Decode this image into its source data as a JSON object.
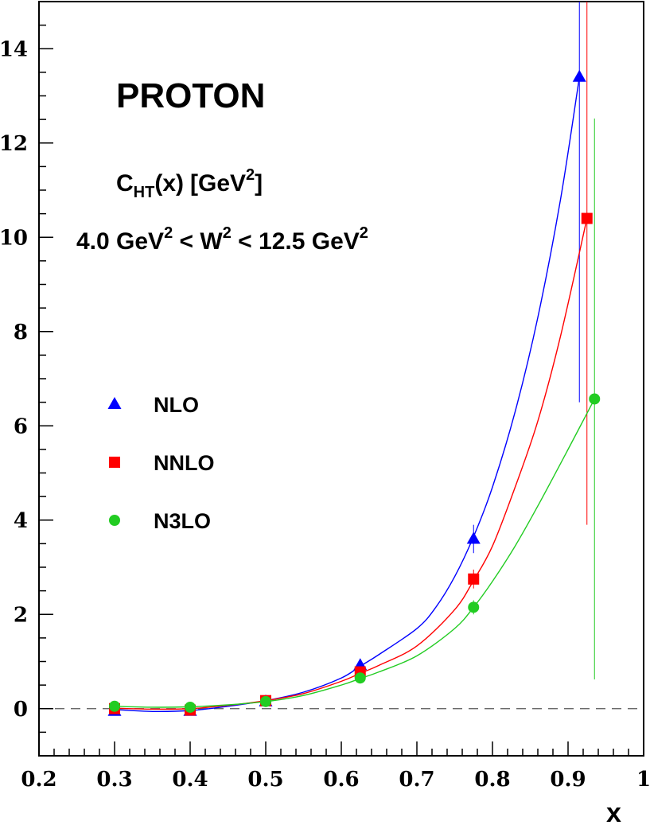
{
  "chart_data": {
    "type": "scatter",
    "title": "PROTON",
    "annotations": {
      "quantity_main": "C",
      "quantity_sub": "HT",
      "quantity_arg": "(x)",
      "quantity_unit_open": "[GeV",
      "quantity_unit_sup": "2",
      "quantity_unit_close": "]",
      "range_a": "4.0 GeV",
      "range_a_sup": "2",
      "range_b": " < W",
      "range_b_sup": "2",
      "range_c": " < 12.5 GeV",
      "range_c_sup": "2"
    },
    "xlabel": "x",
    "ylabel": "",
    "xlim": [
      0.2,
      1.0
    ],
    "ylim": [
      -1.0,
      15.0
    ],
    "xticks": [
      0.2,
      0.3,
      0.4,
      0.5,
      0.6,
      0.7,
      0.8,
      0.9,
      1.0
    ],
    "xtick_labels": [
      "0.2",
      "0.3",
      "0.4",
      "0.5",
      "0.6",
      "0.7",
      "0.8",
      "0.9",
      "1"
    ],
    "yticks": [
      0,
      2,
      4,
      6,
      8,
      10,
      12,
      14
    ],
    "ytick_labels": [
      "0",
      "2",
      "4",
      "6",
      "8",
      "10",
      "12",
      "14"
    ],
    "zero_line": "dashed",
    "grid": false,
    "legend_position": "center-left",
    "series": [
      {
        "name": "NLO",
        "marker": "triangle",
        "color": "#0000ff",
        "points": [
          {
            "x": 0.3,
            "y": -0.05,
            "err": 0.05
          },
          {
            "x": 0.4,
            "y": -0.05,
            "err": 0.05
          },
          {
            "x": 0.5,
            "y": 0.15,
            "err": 0.05
          },
          {
            "x": 0.625,
            "y": 0.92,
            "err": 0.1
          },
          {
            "x": 0.775,
            "y": 3.6,
            "err": 0.3
          },
          {
            "x": 0.915,
            "y": 13.4,
            "err": 6.9
          }
        ],
        "curve": [
          [
            0.3,
            -0.02
          ],
          [
            0.35,
            -0.06
          ],
          [
            0.4,
            -0.04
          ],
          [
            0.45,
            0.05
          ],
          [
            0.5,
            0.17
          ],
          [
            0.55,
            0.35
          ],
          [
            0.6,
            0.65
          ],
          [
            0.625,
            0.9
          ],
          [
            0.65,
            1.15
          ],
          [
            0.7,
            1.7
          ],
          [
            0.725,
            2.15
          ],
          [
            0.75,
            2.8
          ],
          [
            0.775,
            3.65
          ],
          [
            0.8,
            4.7
          ],
          [
            0.83,
            6.3
          ],
          [
            0.86,
            8.3
          ],
          [
            0.89,
            10.8
          ],
          [
            0.915,
            13.4
          ]
        ]
      },
      {
        "name": "NNLO",
        "marker": "square",
        "color": "#ff0000",
        "points": [
          {
            "x": 0.3,
            "y": 0.0,
            "err": 0.05
          },
          {
            "x": 0.4,
            "y": -0.03,
            "err": 0.05
          },
          {
            "x": 0.5,
            "y": 0.17,
            "err": 0.05
          },
          {
            "x": 0.625,
            "y": 0.78,
            "err": 0.1
          },
          {
            "x": 0.775,
            "y": 2.75,
            "err": 0.2
          },
          {
            "x": 0.925,
            "y": 10.4,
            "err": 6.5
          }
        ],
        "curve": [
          [
            0.3,
            0.01
          ],
          [
            0.35,
            -0.01
          ],
          [
            0.4,
            0.0
          ],
          [
            0.45,
            0.07
          ],
          [
            0.5,
            0.17
          ],
          [
            0.55,
            0.32
          ],
          [
            0.6,
            0.58
          ],
          [
            0.625,
            0.75
          ],
          [
            0.65,
            0.92
          ],
          [
            0.7,
            1.33
          ],
          [
            0.75,
            2.1
          ],
          [
            0.775,
            2.72
          ],
          [
            0.8,
            3.45
          ],
          [
            0.83,
            4.7
          ],
          [
            0.86,
            6.1
          ],
          [
            0.89,
            7.9
          ],
          [
            0.925,
            10.4
          ]
        ]
      },
      {
        "name": "N3LO",
        "marker": "circle",
        "color": "#22cc22",
        "points": [
          {
            "x": 0.3,
            "y": 0.05,
            "err": 0.05
          },
          {
            "x": 0.4,
            "y": 0.03,
            "err": 0.05
          },
          {
            "x": 0.5,
            "y": 0.15,
            "err": 0.05
          },
          {
            "x": 0.625,
            "y": 0.65,
            "err": 0.1
          },
          {
            "x": 0.775,
            "y": 2.15,
            "err": 0.15
          },
          {
            "x": 0.935,
            "y": 6.57,
            "err": 5.95
          }
        ],
        "curve": [
          [
            0.3,
            0.05
          ],
          [
            0.35,
            0.03
          ],
          [
            0.4,
            0.04
          ],
          [
            0.45,
            0.08
          ],
          [
            0.5,
            0.15
          ],
          [
            0.55,
            0.28
          ],
          [
            0.6,
            0.5
          ],
          [
            0.625,
            0.64
          ],
          [
            0.65,
            0.78
          ],
          [
            0.7,
            1.12
          ],
          [
            0.75,
            1.7
          ],
          [
            0.775,
            2.15
          ],
          [
            0.8,
            2.7
          ],
          [
            0.83,
            3.45
          ],
          [
            0.86,
            4.3
          ],
          [
            0.9,
            5.5
          ],
          [
            0.935,
            6.57
          ]
        ]
      }
    ]
  }
}
